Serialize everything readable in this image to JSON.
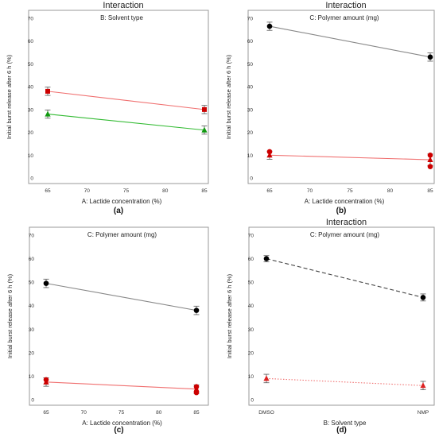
{
  "figure_caption_labels": [
    "(a)",
    "(b)",
    "(c)",
    "(d)"
  ],
  "chart_data": [
    {
      "id": "a",
      "type": "line",
      "title": "Interaction",
      "subtitle": "B: Solvent type",
      "xlabel": "A: Lactide concentration (%)",
      "ylabel": "Initial burst release after 6 h (%)",
      "panel_label": "(a)",
      "x_scale": "linear",
      "xlim": [
        65,
        85
      ],
      "xticks": [
        "65",
        "70",
        "75",
        "80",
        "85"
      ],
      "ylim": [
        0,
        70
      ],
      "yticks": [
        "0",
        "10",
        "20",
        "30",
        "40",
        "50",
        "60",
        "70"
      ],
      "grid": false,
      "series": [
        {
          "x": [
            65,
            85
          ],
          "y": [
            38,
            30
          ],
          "err": [
            1.8,
            1.8
          ],
          "color": "#f07070",
          "marker_color": "#cc0000",
          "marker": "square",
          "dash": "solid"
        },
        {
          "x": [
            65,
            85
          ],
          "y": [
            28,
            21
          ],
          "err": [
            1.8,
            1.8
          ],
          "color": "#33bb33",
          "marker_color": "#119911",
          "marker": "triangle",
          "dash": "solid"
        }
      ]
    },
    {
      "id": "b",
      "type": "line",
      "title": "Interaction",
      "subtitle": "C: Polymer amount (mg)",
      "xlabel": "A: Lactide concentration (%)",
      "ylabel": "Initial burst release after 6 h (%)",
      "panel_label": "(b)",
      "x_scale": "linear",
      "xlim": [
        65,
        85
      ],
      "xticks": [
        "65",
        "70",
        "75",
        "80",
        "85"
      ],
      "ylim": [
        0,
        70
      ],
      "yticks": [
        "0",
        "10",
        "20",
        "30",
        "40",
        "50",
        "60",
        "70"
      ],
      "grid": false,
      "series": [
        {
          "x": [
            65,
            85
          ],
          "y": [
            66.5,
            53
          ],
          "err": [
            1.8,
            1.8
          ],
          "color": "#888888",
          "marker_color": "#000000",
          "marker": "circle",
          "dash": "solid"
        },
        {
          "x": [
            65,
            85
          ],
          "y": [
            10,
            8
          ],
          "err": [
            1.8,
            2.5
          ],
          "color": "#f07070",
          "marker_color": "#cc0000",
          "marker": "triangle",
          "dash": "solid"
        }
      ],
      "extra_points": [
        {
          "x": 65,
          "y": 11.5,
          "color": "#cc0000",
          "marker": "circle"
        },
        {
          "x": 85,
          "y": 10,
          "color": "#cc0000",
          "marker": "circle"
        },
        {
          "x": 85,
          "y": 5,
          "color": "#cc0000",
          "marker": "circle"
        }
      ]
    },
    {
      "id": "c",
      "type": "line",
      "title": "",
      "subtitle": "C: Polymer amount (mg)",
      "xlabel": "A: Lactide concentration (%)",
      "ylabel": "Initial burst release after 6 h (%)",
      "panel_label": "(c)",
      "x_scale": "linear",
      "xlim": [
        65,
        85
      ],
      "xticks": [
        "65",
        "70",
        "75",
        "80",
        "85"
      ],
      "ylim": [
        0,
        70
      ],
      "yticks": [
        "0",
        "10",
        "20",
        "30",
        "40",
        "50",
        "60",
        "70"
      ],
      "grid": false,
      "series": [
        {
          "x": [
            65,
            85
          ],
          "y": [
            49.5,
            38
          ],
          "err": [
            1.8,
            1.8
          ],
          "color": "#888888",
          "marker_color": "#000000",
          "marker": "circle",
          "dash": "solid"
        },
        {
          "x": [
            65,
            85
          ],
          "y": [
            7.5,
            4.5
          ],
          "err": [
            1.8,
            1.8
          ],
          "color": "#f07070",
          "marker_color": "#cc0000",
          "marker": "triangle",
          "dash": "solid"
        }
      ],
      "extra_points": [
        {
          "x": 65,
          "y": 8.5,
          "color": "#cc0000",
          "marker": "circle"
        },
        {
          "x": 85,
          "y": 5.5,
          "color": "#cc0000",
          "marker": "circle"
        },
        {
          "x": 85,
          "y": 3,
          "color": "#cc0000",
          "marker": "circle"
        }
      ]
    },
    {
      "id": "d",
      "type": "line",
      "title": "Interaction",
      "subtitle": "C: Polymer amount (mg)",
      "xlabel": "B: Solvent type",
      "ylabel": "Initial burst release after 6 h (%)",
      "panel_label": "(d)",
      "x_scale": "categorical",
      "categories": [
        "DMSO",
        "NMP"
      ],
      "ylim": [
        0,
        70
      ],
      "yticks": [
        "0",
        "10",
        "20",
        "30",
        "40",
        "50",
        "60",
        "70"
      ],
      "grid": false,
      "series": [
        {
          "x": [
            0,
            1
          ],
          "y": [
            60,
            43.5
          ],
          "err": [
            1.3,
            1.5
          ],
          "color": "#444444",
          "marker_color": "#000000",
          "marker": "circle",
          "dash": "dashed"
        },
        {
          "x": [
            0,
            1
          ],
          "y": [
            9,
            6
          ],
          "err": [
            1.8,
            1.8
          ],
          "color": "#f07070",
          "marker_color": "#dd2222",
          "marker": "triangle",
          "dash": "dotted"
        }
      ]
    }
  ]
}
